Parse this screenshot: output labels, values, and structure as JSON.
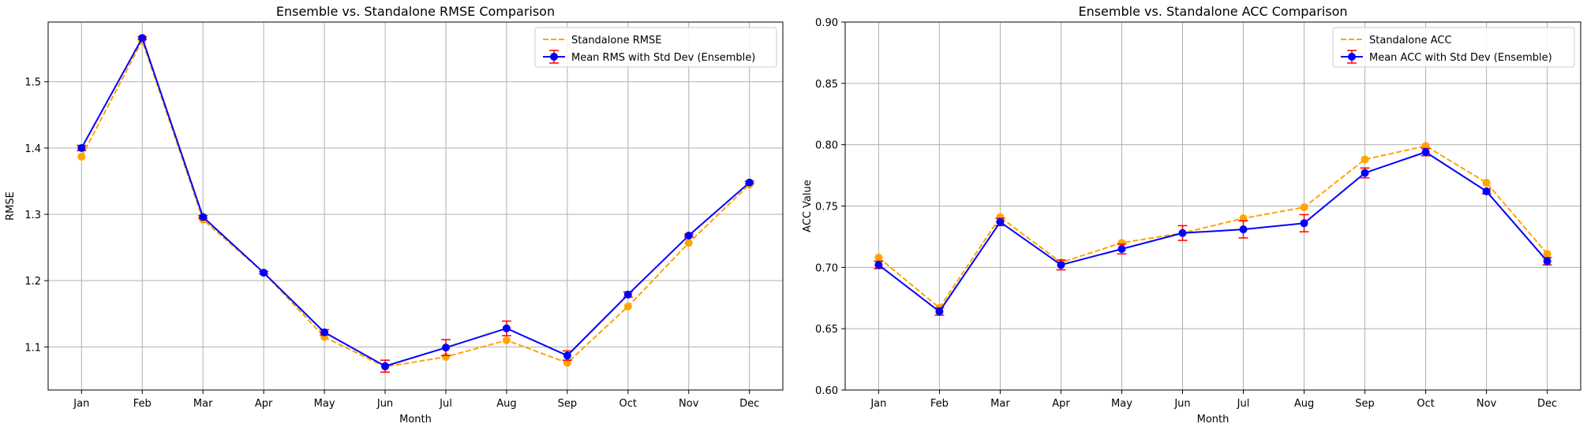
{
  "chart_data": [
    {
      "type": "line",
      "title": "Ensemble vs. Standalone RMSE Comparison",
      "xlabel": "Month",
      "ylabel": "RMSE",
      "categories": [
        "Jan",
        "Feb",
        "Mar",
        "Apr",
        "May",
        "Jun",
        "Jul",
        "Aug",
        "Sep",
        "Oct",
        "Nov",
        "Dec"
      ],
      "ylim": [
        1.035,
        1.59
      ],
      "yticks": [
        1.1,
        1.2,
        1.3,
        1.4,
        1.5
      ],
      "ytick_labels": [
        "1.1",
        "1.2",
        "1.3",
        "1.4",
        "1.5"
      ],
      "grid": true,
      "legend_position": "top-right",
      "series": [
        {
          "name": "Standalone RMSE",
          "style": "dashed-marker",
          "color": "#ffa500",
          "values": [
            1.387,
            1.562,
            1.292,
            1.212,
            1.115,
            1.07,
            1.085,
            1.11,
            1.076,
            1.161,
            1.257,
            1.345
          ]
        },
        {
          "name": "Mean RMS with Std Dev (Ensemble)",
          "style": "errorbar",
          "color": "#0000ff",
          "error_color": "#ff0000",
          "values": [
            1.4,
            1.566,
            1.296,
            1.212,
            1.122,
            1.071,
            1.099,
            1.128,
            1.087,
            1.179,
            1.268,
            1.348
          ],
          "errors": [
            0.004,
            0.002,
            0.002,
            0.002,
            0.004,
            0.009,
            0.012,
            0.011,
            0.007,
            0.004,
            0.002,
            0.002
          ]
        }
      ]
    },
    {
      "type": "line",
      "title": "Ensemble vs. Standalone ACC Comparison",
      "xlabel": "Month",
      "ylabel": "ACC Value",
      "categories": [
        "Jan",
        "Feb",
        "Mar",
        "Apr",
        "May",
        "Jun",
        "Jul",
        "Aug",
        "Sep",
        "Oct",
        "Nov",
        "Dec"
      ],
      "ylim": [
        0.6,
        0.9
      ],
      "yticks": [
        0.6,
        0.65,
        0.7,
        0.75,
        0.8,
        0.85,
        0.9
      ],
      "ytick_labels": [
        "0.60",
        "0.65",
        "0.70",
        "0.75",
        "0.80",
        "0.85",
        "0.90"
      ],
      "grid": true,
      "legend_position": "top-right",
      "series": [
        {
          "name": "Standalone ACC",
          "style": "dashed-marker",
          "color": "#ffa500",
          "values": [
            0.708,
            0.667,
            0.741,
            0.704,
            0.72,
            0.728,
            0.74,
            0.749,
            0.788,
            0.799,
            0.769,
            0.711
          ]
        },
        {
          "name": "Mean ACC with Std Dev (Ensemble)",
          "style": "errorbar",
          "color": "#0000ff",
          "error_color": "#ff0000",
          "values": [
            0.702,
            0.664,
            0.737,
            0.702,
            0.715,
            0.728,
            0.731,
            0.736,
            0.777,
            0.794,
            0.762,
            0.705
          ],
          "errors": [
            0.003,
            0.003,
            0.003,
            0.004,
            0.004,
            0.006,
            0.007,
            0.007,
            0.004,
            0.003,
            0.002,
            0.003
          ]
        }
      ]
    }
  ]
}
